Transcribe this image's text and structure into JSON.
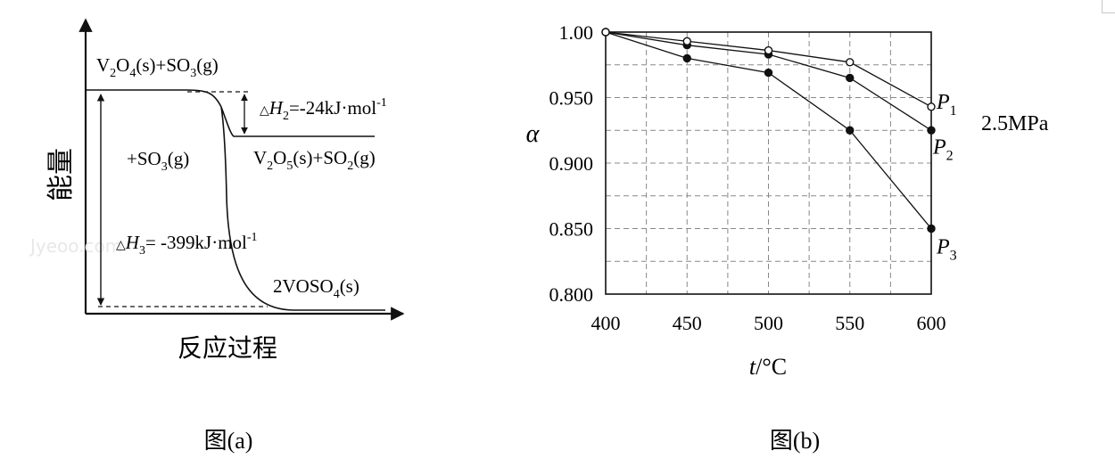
{
  "figure_a": {
    "caption": "图(a)",
    "y_axis_label": "能量",
    "x_axis_label": "反应过程",
    "watermark": "Jyeoo.com",
    "top_level_label": {
      "pre": "V",
      "s1": "2",
      "mid": "O",
      "s2": "4",
      "post": "(s)+SO",
      "s3": "3",
      "end": "(g)"
    },
    "mid_level_label": {
      "pre": "V",
      "s1": "2",
      "mid": "O",
      "s2": "5",
      "post": "(s)+SO",
      "s3": "2",
      "end": "(g)"
    },
    "bottom_level_label": {
      "pre": "2VOSO",
      "s1": "4",
      "post": "(s)"
    },
    "reagent_label": {
      "pre": "+SO",
      "s1": "3",
      "post": "(g)"
    },
    "dh2_label": {
      "tri": "△",
      "H": "H",
      "sub": "2",
      "val": "=-24kJ·mol",
      "sup": "-1"
    },
    "dh3_label": {
      "tri": "△",
      "H": "H",
      "sub": "3",
      "val": "= -399kJ·mol",
      "sup": "-1"
    }
  },
  "figure_b": {
    "caption": "图(b)",
    "pressure_note": "2.5MPa"
  },
  "chart_data": [
    {
      "type": "line",
      "title": "",
      "xlabel": {
        "var": "t",
        "unit": "/°C"
      },
      "ylabel": "α",
      "xlim": [
        400,
        600
      ],
      "ylim": [
        0.8,
        1.0
      ],
      "x_ticks": [
        400,
        450,
        500,
        550,
        600
      ],
      "x_tick_labels": [
        "400",
        "450",
        "500",
        "550",
        "600"
      ],
      "y_ticks": [
        0.8,
        0.85,
        0.9,
        0.95,
        1.0
      ],
      "y_tick_labels": [
        "0.800",
        "0.850",
        "0.900",
        "0.950",
        "1.00"
      ],
      "grid": "dashed",
      "x": [
        400,
        450,
        500,
        550,
        600
      ],
      "series": [
        {
          "name": "P1",
          "name_parts": {
            "main": "P",
            "sub": "1"
          },
          "marker": "open-circle",
          "values": [
            1.0,
            0.993,
            0.986,
            0.977,
            0.943
          ]
        },
        {
          "name": "P2",
          "name_parts": {
            "main": "P",
            "sub": "2"
          },
          "marker": "filled-circle",
          "values": [
            1.0,
            0.99,
            0.983,
            0.965,
            0.925
          ]
        },
        {
          "name": "P3",
          "name_parts": {
            "main": "P",
            "sub": "3"
          },
          "marker": "filled-circle",
          "values": [
            1.0,
            0.98,
            0.969,
            0.925,
            0.85
          ]
        }
      ]
    }
  ]
}
